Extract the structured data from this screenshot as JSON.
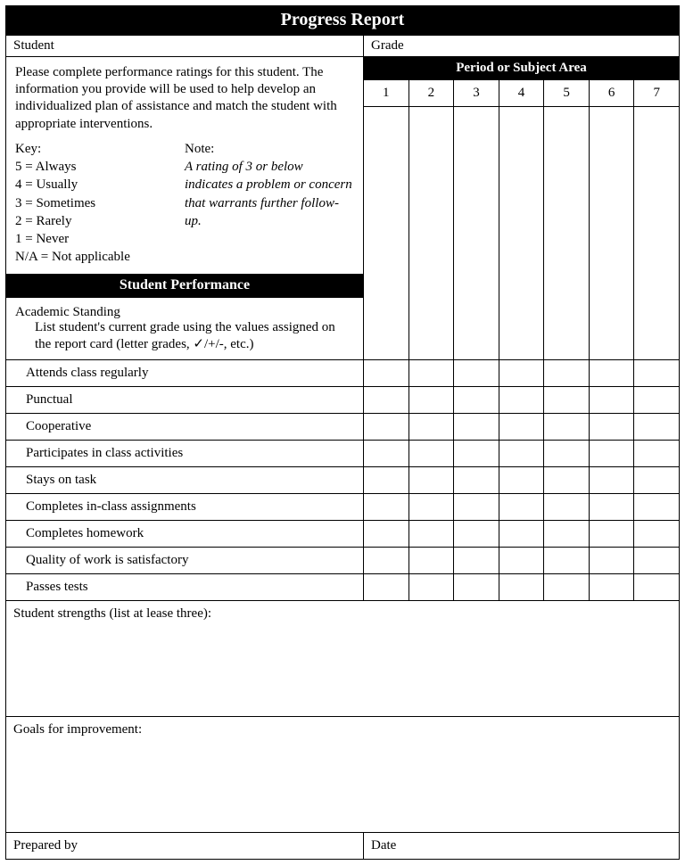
{
  "title": "Progress Report",
  "header": {
    "student_label": "Student",
    "grade_label": "Grade"
  },
  "instructions": "Please complete performance ratings for this student. The information you provide will be used to help develop an individualized plan of assistance and match the student with appropriate interventions.",
  "key": {
    "heading": "Key:",
    "lines": [
      "5 = Always",
      "4 = Usually",
      "3 = Sometimes",
      "2 = Rarely",
      "1 = Never",
      "N/A = Not applicable"
    ]
  },
  "note": {
    "heading": "Note:",
    "body": "A rating of 3 or below indicates a problem or concern that warrants further follow-up."
  },
  "periods": {
    "header": "Period or Subject Area",
    "numbers": [
      "1",
      "2",
      "3",
      "4",
      "5",
      "6",
      "7"
    ]
  },
  "section_performance": "Student Performance",
  "academic": {
    "title": "Academic Standing",
    "sub": "List student's current grade using the values assigned on the report card (letter grades, ✓/+/-, etc.)"
  },
  "perf_rows": [
    "Attends class regularly",
    "Punctual",
    "Cooperative",
    "Participates in class activities",
    "Stays on task",
    "Completes in-class assignments",
    "Completes homework",
    "Quality of work is satisfactory",
    "Passes tests"
  ],
  "strengths_label": "Student strengths (list at lease three):",
  "goals_label": "Goals for improvement:",
  "footer": {
    "prepared_by": "Prepared by",
    "date": "Date"
  },
  "colors": {
    "background": "#ffffff",
    "header_bg": "#000000",
    "header_text": "#ffffff",
    "border": "#000000",
    "text": "#000000"
  }
}
